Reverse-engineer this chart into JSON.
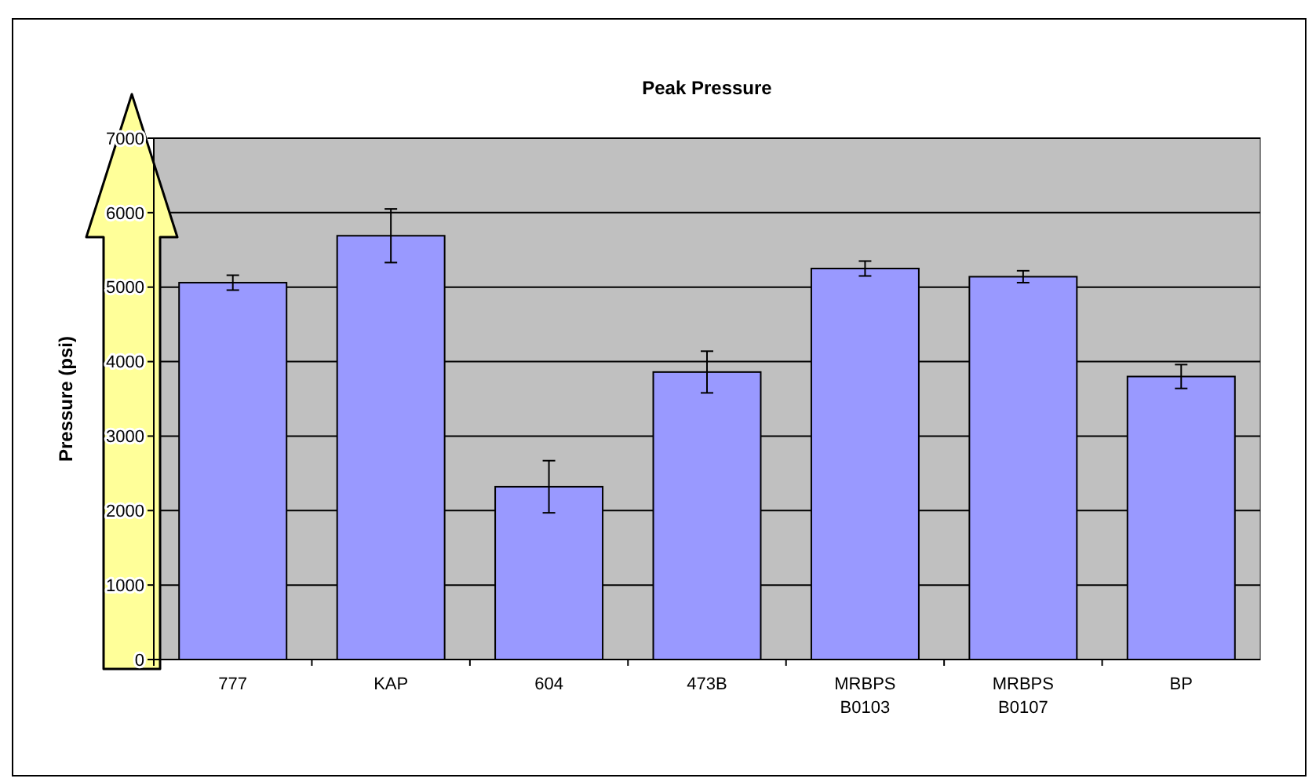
{
  "chart_data": {
    "type": "bar",
    "title": "Peak Pressure",
    "ylabel": "Pressure (psi)",
    "categories": [
      "777",
      "KAP",
      "604",
      "473B",
      "MRBPS B0103",
      "MRBPS B0107",
      "BP"
    ],
    "values": [
      5060,
      5690,
      2320,
      3860,
      5250,
      5140,
      3800
    ],
    "errors": [
      100,
      360,
      350,
      280,
      100,
      80,
      160
    ],
    "color": "#9999ff",
    "ylim": [
      0,
      7000
    ],
    "yticks": [
      0,
      1000,
      2000,
      3000,
      4000,
      5000,
      6000,
      7000
    ],
    "grid": "y"
  }
}
